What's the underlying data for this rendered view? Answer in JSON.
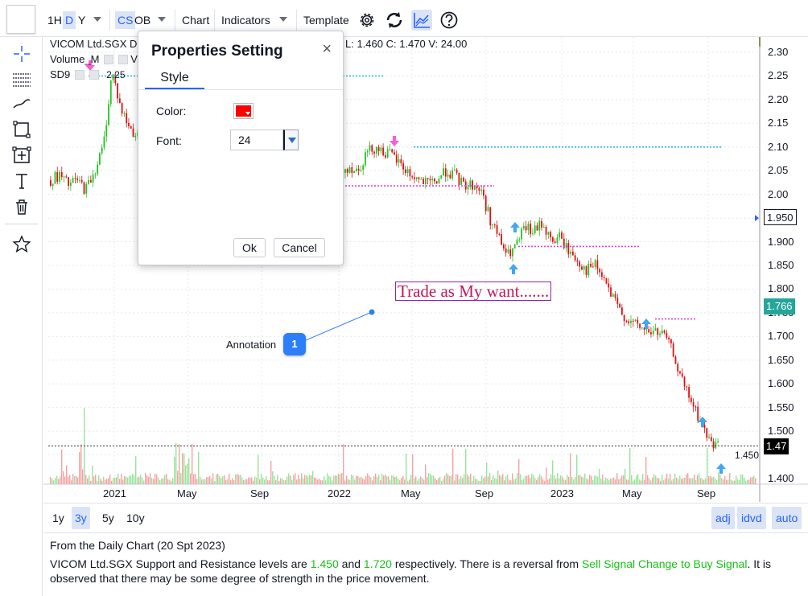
{
  "toolbar": {
    "interval_1h": "1H",
    "interval_d": "D",
    "interval_y": "Y",
    "chart_type_cs": "CS",
    "chart_type_ob": "OB",
    "chart_label": "Chart",
    "indicators_label": "Indicators",
    "template_label": "Template",
    "icons": [
      "settings-gear-icon",
      "refresh-icon",
      "compare-chart-icon",
      "help-icon"
    ]
  },
  "left_tools": {
    "icons": [
      "crosshair-icon",
      "horizontal-lines-icon",
      "trend-line-icon",
      "rectangle-icon",
      "measure-icon",
      "text-icon",
      "trash-icon",
      "favorite-star-icon"
    ]
  },
  "legend": {
    "symbol": "VICOM Ltd.SGX Da",
    "ohlc_tail": "L: 1.460   C: 1.470   V: 24.00",
    "volume": "Volume_M",
    "volume_tail": "V",
    "sd9": "SD9",
    "sd9_value": "2.25"
  },
  "annotation": {
    "label": "Annotation",
    "number": "1"
  },
  "trade_text": "Trade as My want.......",
  "price_axis": {
    "ticks": [
      "2.30",
      "2.25",
      "2.20",
      "2.15",
      "2.10",
      "2.05",
      "2.00",
      "1.950",
      "1.900",
      "1.850",
      "1.800",
      "1.766",
      "1.750",
      "1.700",
      "1.650",
      "1.600",
      "1.550",
      "1.500",
      "1.47",
      "1.450",
      "1.400"
    ],
    "crosshair_label": "1.950",
    "last_close_label": "1.766",
    "current_label": "1.47",
    "support_label": "1.450",
    "colors": {
      "last_close_bg": "#26a69a",
      "current_bg": "#000000",
      "crosshair_bg": "#ffffff"
    }
  },
  "time_axis": {
    "labels": [
      "2021",
      "May",
      "Sep",
      "2022",
      "May",
      "Sep",
      "2023",
      "May",
      "Sep"
    ]
  },
  "chart_data": {
    "type": "candlestick",
    "symbol": "VICOM Ltd.SGX",
    "ylim": [
      1.38,
      2.33
    ],
    "grid": true,
    "close_series": [
      2.03,
      2.04,
      2.02,
      2.03,
      2.01,
      2.05,
      2.1,
      2.26,
      2.18,
      2.14,
      2.12,
      2.16,
      2.18,
      2.2,
      2.17,
      2.14,
      2.15,
      2.12,
      2.1,
      2.08,
      2.09,
      2.07,
      2.06,
      2.04,
      2.03,
      2.04,
      2.02,
      2.03,
      2.02,
      2.01,
      2.02,
      2.03,
      2.04,
      2.05,
      2.06,
      2.05,
      2.09,
      2.1,
      2.09,
      2.08,
      2.06,
      2.04,
      2.03,
      2.02,
      2.03,
      2.05,
      2.04,
      2.02,
      2.02,
      2.01,
      1.95,
      1.91,
      1.87,
      1.89,
      1.93,
      1.92,
      1.94,
      1.9,
      1.91,
      1.88,
      1.86,
      1.84,
      1.85,
      1.82,
      1.78,
      1.75,
      1.73,
      1.72,
      1.71,
      1.71,
      1.7,
      1.66,
      1.6,
      1.56,
      1.52,
      1.48,
      1.47
    ],
    "resistance_levels": [
      2.25,
      2.1
    ],
    "support_levels": [
      2.02,
      1.89,
      1.74
    ],
    "support_resistance_text": {
      "support": "1.450",
      "resistance": "1.720"
    },
    "annotations": [
      {
        "label": "Annotation",
        "number": "1"
      },
      {
        "text": "Trade as My want......."
      }
    ]
  },
  "dialog": {
    "title": "Properties Setting",
    "close": "×",
    "tab_style": "Style",
    "color_label": "Color:",
    "color_value": "#ff0000",
    "font_label": "Font:",
    "font_value": "24",
    "ok": "Ok",
    "cancel": "Cancel"
  },
  "range_bar": {
    "r1y": "1y",
    "r3y": "3y",
    "r5y": "5y",
    "r10y": "10y",
    "adj": "adj",
    "idvd": "idvd",
    "auto": "auto"
  },
  "commentary": {
    "heading": "From the Daily Chart (20 Spt 2023)",
    "p1": "VICOM Ltd.SGX Support and Resistance levels are ",
    "support": "1.450",
    "and": " and ",
    "resistance": "1.720",
    "p2": " respectively. There is a reversal from ",
    "signal": "Sell Signal Change to Buy Signal",
    "p3": ". It is observed that there may be some degree of strength in the price movement."
  }
}
